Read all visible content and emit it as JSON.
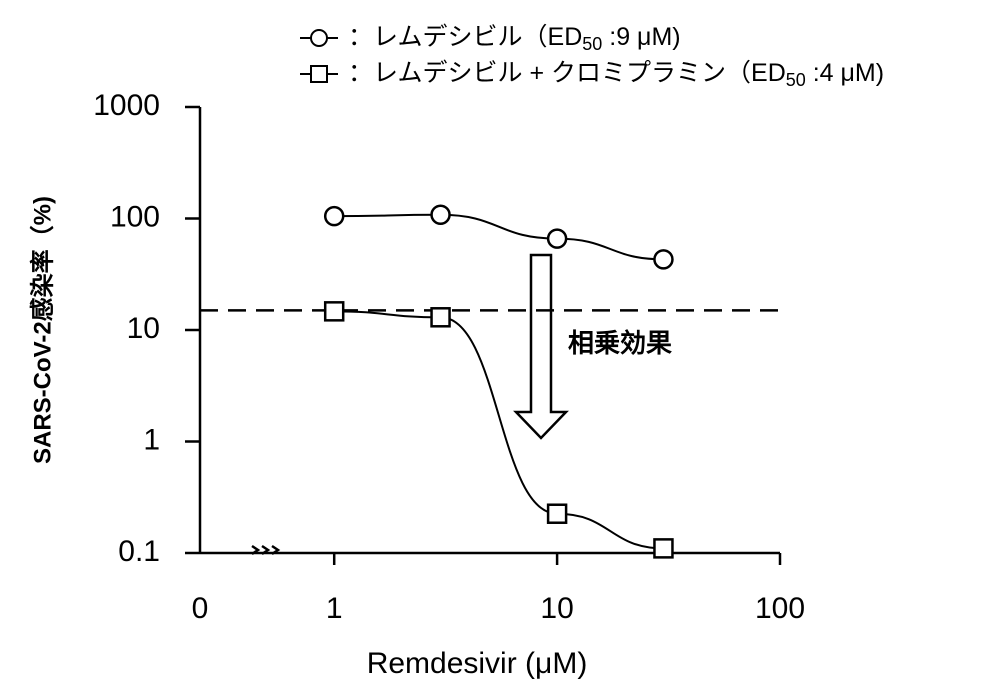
{
  "chart_data": {
    "type": "line",
    "x_label": "Remdesivir (μM)",
    "y_label": "SARS-CoV-2感染率（%)",
    "log_x": true,
    "log_y": true,
    "xlim": [
      0.25,
      100
    ],
    "xticks": [
      1,
      10,
      100
    ],
    "x_zero_label": "0",
    "ylim": [
      0.1,
      1000
    ],
    "yticks": [
      0.1,
      1,
      10,
      100,
      1000
    ],
    "legend_sep": "：",
    "reference_line": 15,
    "annotation": "相乗効果",
    "x": [
      1,
      3,
      10,
      30
    ],
    "series": [
      {
        "name": "レムデシビル",
        "ed_prefix": "（ED",
        "ed_sub": "50",
        "ed_value": " :9 μM)",
        "marker": "circle",
        "color": "#000000",
        "values": [
          105,
          108,
          66,
          43
        ]
      },
      {
        "name": "レムデシビル + クロミプラミン",
        "ed_prefix": "（ED",
        "ed_sub": "50",
        "ed_value": " :4 μM)",
        "marker": "square",
        "color": "#000000",
        "values": [
          14.7,
          13,
          0.225,
          0.11
        ]
      }
    ]
  }
}
